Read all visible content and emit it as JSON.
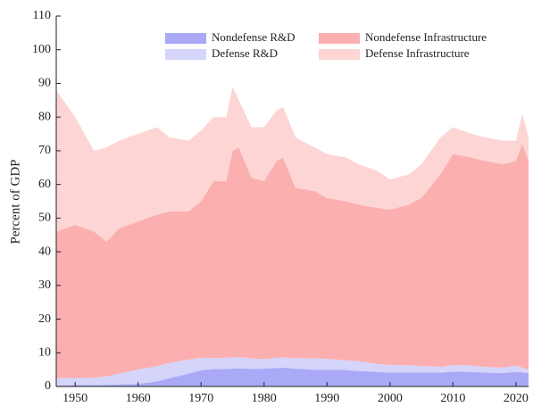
{
  "chart_data": {
    "type": "stacked_area",
    "y_label": "Percent of GDP",
    "x": [
      1947,
      1950,
      1953,
      1955,
      1957,
      1960,
      1963,
      1965,
      1968,
      1970,
      1972,
      1974,
      1975,
      1976,
      1978,
      1980,
      1982,
      1983,
      1985,
      1988,
      1990,
      1993,
      1995,
      1998,
      2000,
      2003,
      2005,
      2008,
      2010,
      2013,
      2015,
      2018,
      2020,
      2021,
      2022
    ],
    "series": [
      {
        "name": "Nondefense R&D",
        "color": "#a9a9f7",
        "values": [
          0.3,
          0.4,
          0.4,
          0.5,
          0.6,
          0.8,
          1.5,
          2.5,
          3.8,
          4.8,
          5.2,
          5.2,
          5.3,
          5.4,
          5.2,
          5.3,
          5.5,
          5.6,
          5.3,
          5.0,
          4.9,
          4.9,
          4.6,
          4.3,
          4.1,
          4.2,
          4.1,
          4.1,
          4.4,
          4.3,
          4.1,
          4.0,
          4.3,
          4.2,
          4.0
        ]
      },
      {
        "name": "Defense R&D",
        "color": "#d5d5fb",
        "values": [
          2.2,
          2.1,
          2.2,
          2.5,
          3.2,
          4.2,
          4.5,
          4.5,
          4.2,
          3.7,
          3.2,
          3.3,
          3.3,
          3.3,
          3.1,
          2.8,
          3.0,
          3.0,
          3.1,
          3.3,
          3.3,
          2.9,
          2.9,
          2.4,
          2.3,
          2.1,
          2.0,
          1.7,
          2.0,
          1.9,
          1.7,
          1.6,
          1.9,
          1.4,
          1.0
        ]
      },
      {
        "name": "Nondefense Infrastructure",
        "color": "#fbafaf",
        "values": [
          43.5,
          45.5,
          43.4,
          40,
          43.2,
          44,
          45,
          45,
          44,
          46.5,
          52.6,
          52.5,
          61.4,
          62.3,
          53.7,
          52.9,
          58.5,
          59.4,
          50.6,
          49.7,
          47.8,
          47.2,
          46.5,
          46.3,
          46.1,
          47.7,
          49.9,
          57.2,
          62.6,
          61.8,
          61.2,
          60.4,
          60.8,
          66.4,
          62
        ]
      },
      {
        "name": "Defense Infrastructure",
        "color": "#fdd5d5",
        "values": [
          42,
          32,
          24,
          28,
          26,
          26,
          26,
          22,
          21,
          21,
          19,
          19,
          19,
          14,
          15,
          16,
          15,
          15,
          15,
          13,
          13,
          13,
          12,
          11,
          9,
          9,
          10,
          11,
          8,
          7,
          7,
          7,
          6,
          9,
          7
        ]
      }
    ],
    "xlim": [
      1947,
      2022
    ],
    "xticks": [
      1950,
      1960,
      1970,
      1980,
      1990,
      2000,
      2010,
      2020
    ],
    "ylim": [
      0,
      110
    ],
    "yticks": [
      0,
      10,
      20,
      30,
      40,
      50,
      60,
      70,
      80,
      90,
      100,
      110
    ]
  }
}
